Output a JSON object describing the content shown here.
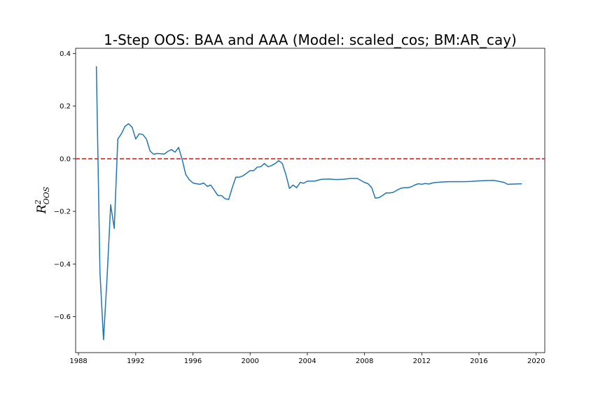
{
  "chart_data": {
    "type": "line",
    "title": "1-Step OOS: BAA and AAA (Model: scaled_cos; BM:AR_cay)",
    "xlabel": "",
    "ylabel_base": "R",
    "ylabel_sup": "2",
    "ylabel_sub": "OOS",
    "xlim": [
      1987.8,
      2020.6
    ],
    "ylim": [
      -0.737,
      0.42
    ],
    "xticks": [
      1988,
      1992,
      1996,
      2000,
      2004,
      2008,
      2012,
      2016,
      2020
    ],
    "xtick_labels": [
      "1988",
      "1992",
      "1996",
      "2000",
      "2004",
      "2008",
      "2012",
      "2016",
      "2020"
    ],
    "yticks": [
      -0.6,
      -0.4,
      -0.2,
      0.0,
      0.2,
      0.4
    ],
    "ytick_labels": [
      "−0.6",
      "−0.4",
      "−0.2",
      "0.0",
      "0.2",
      "0.4"
    ],
    "reference_line": {
      "y": 0.0,
      "color": "#d62728",
      "style": "dashed"
    },
    "series": [
      {
        "color": "#1f77b4",
        "x": [
          1989.25,
          1989.5,
          1989.75,
          1990.0,
          1990.25,
          1990.5,
          1990.75,
          1991.0,
          1991.25,
          1991.5,
          1991.75,
          1992.0,
          1992.25,
          1992.5,
          1992.75,
          1993.0,
          1993.25,
          1993.5,
          1993.75,
          1994.0,
          1994.25,
          1994.5,
          1994.75,
          1995.0,
          1995.25,
          1995.5,
          1995.75,
          1996.0,
          1996.25,
          1996.5,
          1996.75,
          1997.0,
          1997.25,
          1997.5,
          1997.75,
          1998.0,
          1998.25,
          1998.5,
          1998.75,
          1999.0,
          1999.25,
          1999.5,
          1999.75,
          2000.0,
          2000.25,
          2000.5,
          2000.75,
          2001.0,
          2001.25,
          2001.5,
          2001.75,
          2002.0,
          2002.25,
          2002.5,
          2002.75,
          2003.0,
          2003.25,
          2003.5,
          2003.75,
          2004.0,
          2004.5,
          2005.0,
          2005.5,
          2006.0,
          2006.5,
          2007.0,
          2007.5,
          2008.0,
          2008.25,
          2008.5,
          2008.75,
          2009.0,
          2009.25,
          2009.5,
          2009.75,
          2010.0,
          2010.25,
          2010.5,
          2010.75,
          2011.0,
          2011.25,
          2011.5,
          2011.75,
          2012.0,
          2012.25,
          2012.5,
          2012.75,
          2013.0,
          2013.5,
          2014.0,
          2014.5,
          2015.0,
          2015.5,
          2016.0,
          2016.5,
          2017.0,
          2017.5,
          2017.75,
          2018.0,
          2018.5,
          2019.0
        ],
        "y": [
          0.352,
          -0.43,
          -0.688,
          -0.45,
          -0.175,
          -0.265,
          0.075,
          0.095,
          0.123,
          0.133,
          0.12,
          0.075,
          0.095,
          0.092,
          0.075,
          0.03,
          0.017,
          0.02,
          0.019,
          0.018,
          0.028,
          0.035,
          0.025,
          0.043,
          -0.003,
          -0.06,
          -0.08,
          -0.092,
          -0.095,
          -0.097,
          -0.092,
          -0.105,
          -0.1,
          -0.12,
          -0.14,
          -0.14,
          -0.152,
          -0.155,
          -0.11,
          -0.07,
          -0.07,
          -0.065,
          -0.055,
          -0.045,
          -0.045,
          -0.032,
          -0.03,
          -0.018,
          -0.03,
          -0.026,
          -0.018,
          -0.007,
          -0.018,
          -0.06,
          -0.113,
          -0.1,
          -0.11,
          -0.09,
          -0.093,
          -0.085,
          -0.085,
          -0.078,
          -0.077,
          -0.079,
          -0.078,
          -0.075,
          -0.075,
          -0.09,
          -0.095,
          -0.11,
          -0.15,
          -0.148,
          -0.14,
          -0.13,
          -0.13,
          -0.128,
          -0.12,
          -0.113,
          -0.11,
          -0.11,
          -0.107,
          -0.1,
          -0.095,
          -0.097,
          -0.094,
          -0.096,
          -0.092,
          -0.09,
          -0.088,
          -0.087,
          -0.087,
          -0.087,
          -0.086,
          -0.084,
          -0.083,
          -0.082,
          -0.087,
          -0.09,
          -0.097,
          -0.096,
          -0.095
        ]
      }
    ]
  }
}
